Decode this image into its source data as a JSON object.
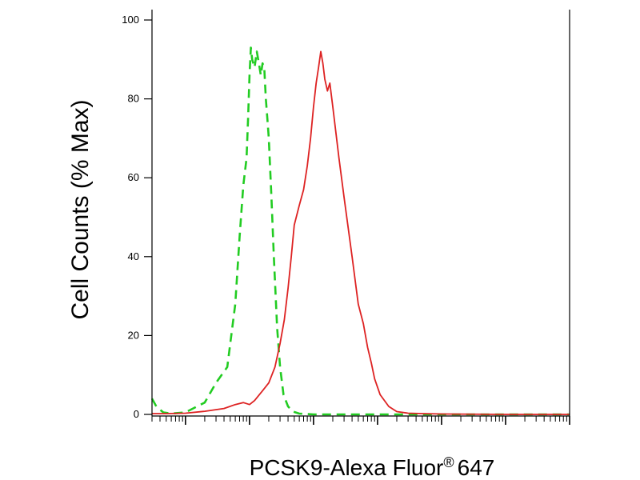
{
  "chart_data": {
    "type": "line",
    "title": "",
    "xlabel": "PCSK9-Alexa Fluor",
    "xlabel_superscript": "®",
    "xlabel_suffix": "647",
    "ylabel": "Cell Counts (% Max)",
    "xscale": "log",
    "xlim": [
      0.3,
      1000000
    ],
    "ylim": [
      0,
      100
    ],
    "yticks": [
      0,
      20,
      40,
      60,
      80,
      100
    ],
    "ytick_labels": [
      "0",
      "20",
      "40",
      "60",
      "80",
      "100"
    ],
    "xtick_labels": [],
    "grid": false,
    "legend": "none",
    "series": [
      {
        "color": "#22cc22",
        "line_style": "dashed",
        "x": [
          0.3,
          0.35,
          0.45,
          0.6,
          1,
          2,
          3,
          4.5,
          6,
          7,
          8,
          9,
          9.5,
          10,
          10.5,
          11,
          12,
          13,
          14,
          15,
          16,
          17,
          18,
          19,
          20,
          22,
          24,
          27,
          30,
          34,
          40,
          48,
          60,
          100,
          1000,
          10000,
          100000,
          1000000
        ],
        "values": [
          4,
          2,
          0.5,
          0.2,
          0.5,
          3,
          8,
          12,
          28,
          45,
          58,
          65,
          75,
          86,
          93,
          90,
          88,
          92,
          89,
          86,
          89,
          88,
          80,
          75,
          70,
          55,
          40,
          22,
          12,
          5,
          2,
          0.7,
          0.2,
          0,
          0,
          0,
          0,
          0
        ]
      },
      {
        "color": "#dd2222",
        "line_style": "solid",
        "x": [
          0.3,
          0.5,
          1,
          2,
          4,
          6,
          8,
          10,
          12,
          16,
          20,
          25,
          30,
          35,
          40,
          45,
          50,
          60,
          70,
          80,
          90,
          100,
          110,
          120,
          130,
          140,
          150,
          165,
          180,
          200,
          250,
          300,
          400,
          500,
          600,
          700,
          800,
          900,
          1100,
          1500,
          2000,
          3000,
          5000,
          10000,
          100000,
          1000000
        ],
        "values": [
          0.2,
          0.2,
          0.3,
          0.8,
          1.5,
          2.5,
          3,
          2.5,
          3.5,
          6,
          8,
          12,
          18,
          24,
          32,
          40,
          48,
          53,
          57,
          63,
          70,
          78,
          84,
          88,
          92,
          89,
          85,
          82,
          84,
          78,
          65,
          55,
          40,
          28,
          23,
          17,
          13,
          9,
          5,
          2,
          0.7,
          0.3,
          0.2,
          0.1,
          0,
          0
        ]
      }
    ]
  }
}
